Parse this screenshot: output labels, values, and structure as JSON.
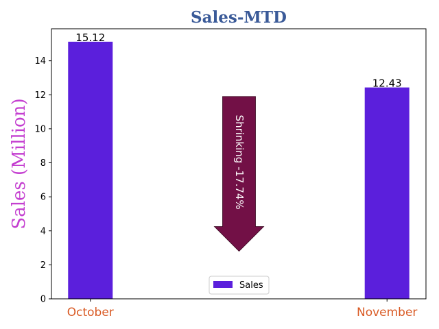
{
  "chart_data": {
    "type": "bar",
    "title": "Sales-MTD",
    "xlabel": "",
    "ylabel": "Sales (Million)",
    "categories": [
      "October",
      "November"
    ],
    "series": [
      {
        "name": "Sales",
        "values": [
          15.12,
          12.43
        ]
      }
    ],
    "data_labels": [
      "15.12",
      "12.43"
    ],
    "ylim": [
      0,
      15.88
    ],
    "yticks": [
      0,
      2,
      4,
      6,
      8,
      10,
      12,
      14
    ],
    "grid": false,
    "legend": "lower center",
    "annotation": {
      "text": "Shrinking  -17.74%",
      "from_value": 11.9,
      "to_value": 2.8
    },
    "colors": {
      "bar": "#5b1fdc",
      "arrow": "#721046",
      "title": "#3a5a98",
      "ylabel": "#c43fd0",
      "xtick": "#d95a24"
    }
  }
}
